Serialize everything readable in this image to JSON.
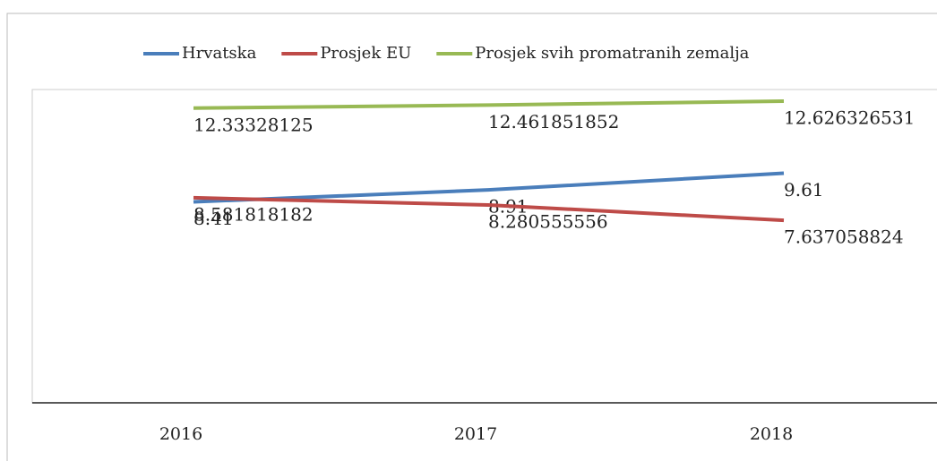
{
  "chart_data": {
    "type": "line",
    "categories": [
      "2016",
      "2017",
      "2018"
    ],
    "series": [
      {
        "name": "Hrvatska",
        "color": "#4a7ebb",
        "values": [
          8.41,
          8.91,
          9.61
        ]
      },
      {
        "name": "Prosjek EU",
        "color": "#be4b48",
        "values": [
          8.581818182,
          8.280555556,
          7.637058824
        ]
      },
      {
        "name": "Prosjek svih promatranih zemalja",
        "color": "#98b954",
        "values": [
          12.33328125,
          12.461851852,
          12.626326531
        ]
      }
    ],
    "ylim": [
      0,
      13
    ]
  }
}
